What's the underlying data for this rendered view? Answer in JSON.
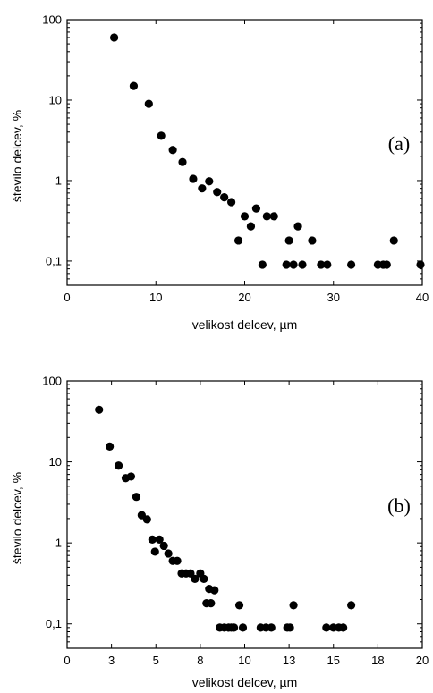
{
  "chart_data": [
    {
      "type": "scatter",
      "panel_label": "(a)",
      "xlabel": "velikost delcev, µm",
      "ylabel": "število delcev, %",
      "xlim": [
        0,
        40
      ],
      "ylim": [
        0.05,
        100
      ],
      "y_scale": "log",
      "grid": false,
      "legend": "none",
      "marker_color": "#000000",
      "x_ticks": [
        0,
        10,
        20,
        30,
        40
      ],
      "x_tick_labels": [
        "0",
        "10",
        "20",
        "30",
        "40"
      ],
      "y_ticks": [
        0.1,
        1,
        10,
        100
      ],
      "y_tick_labels": [
        "0,1",
        "1",
        "10",
        "100"
      ],
      "x": [
        5.3,
        7.5,
        9.2,
        10.6,
        11.9,
        13.0,
        14.2,
        15.2,
        16.0,
        16.9,
        17.7,
        18.5,
        19.3,
        20.0,
        20.7,
        21.3,
        22.0,
        22.5,
        23.3,
        24.7,
        25.0,
        25.5,
        26.0,
        26.5,
        27.6,
        28.6,
        29.3,
        32.0,
        35.0,
        35.6,
        36.0,
        36.8,
        39.8
      ],
      "y": [
        60,
        15,
        9,
        3.6,
        2.4,
        1.7,
        1.05,
        0.8,
        0.98,
        0.72,
        0.62,
        0.54,
        0.18,
        0.36,
        0.27,
        0.45,
        0.09,
        0.36,
        0.36,
        0.09,
        0.18,
        0.09,
        0.27,
        0.09,
        0.18,
        0.09,
        0.09,
        0.09,
        0.09,
        0.09,
        0.09,
        0.18,
        0.09
      ]
    },
    {
      "type": "scatter",
      "panel_label": "(b)",
      "xlabel": "velikost delcev, µm",
      "ylabel": "število delcev, %",
      "xlim": [
        0,
        20
      ],
      "ylim": [
        0.05,
        100
      ],
      "y_scale": "log",
      "grid": false,
      "legend": "none",
      "marker_color": "#000000",
      "x_ticks": [
        0,
        2.5,
        5,
        7.5,
        10,
        12.5,
        15,
        17.5,
        20
      ],
      "x_tick_labels": [
        "0",
        "3",
        "5",
        "8",
        "10",
        "13",
        "15",
        "18",
        "20"
      ],
      "y_ticks": [
        0.1,
        1,
        10,
        100
      ],
      "y_tick_labels": [
        "0,1",
        "1",
        "10",
        "100"
      ],
      "x": [
        1.8,
        2.4,
        2.9,
        3.3,
        3.6,
        3.9,
        4.2,
        4.5,
        4.8,
        4.95,
        5.2,
        5.45,
        5.7,
        5.95,
        6.2,
        6.45,
        6.7,
        6.95,
        7.2,
        7.5,
        7.7,
        7.85,
        8.0,
        8.1,
        8.3,
        8.6,
        8.85,
        9.1,
        9.25,
        9.4,
        9.7,
        9.9,
        10.9,
        11.2,
        11.5,
        12.4,
        12.55,
        12.75,
        14.6,
        15.0,
        15.3,
        15.55,
        16.0
      ],
      "y": [
        44,
        15.5,
        9,
        6.3,
        6.6,
        3.7,
        2.2,
        1.95,
        1.1,
        0.78,
        1.1,
        0.92,
        0.74,
        0.6,
        0.6,
        0.42,
        0.42,
        0.42,
        0.36,
        0.42,
        0.36,
        0.18,
        0.27,
        0.18,
        0.26,
        0.09,
        0.09,
        0.09,
        0.09,
        0.09,
        0.17,
        0.09,
        0.09,
        0.09,
        0.09,
        0.09,
        0.09,
        0.17,
        0.09,
        0.09,
        0.09,
        0.09,
        0.17
      ]
    }
  ]
}
